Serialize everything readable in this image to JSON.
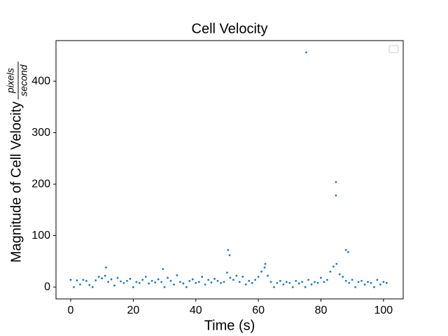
{
  "chart_data": {
    "type": "scatter",
    "title": "Cell Velocity",
    "xlabel": "Time (s)",
    "ylabel": "Magnitude of Cell Velocity",
    "ylabel_fraction_numerator": "pixels",
    "ylabel_fraction_denominator": "second",
    "color": "#1f77b4",
    "x": [
      0,
      1,
      2,
      3,
      4,
      5,
      6,
      7,
      8,
      9,
      10,
      11,
      12,
      13,
      14,
      15,
      16,
      17,
      18,
      19,
      20,
      21,
      22,
      23,
      24,
      25,
      26,
      27,
      28,
      29,
      30,
      31,
      32,
      33,
      34,
      35,
      36,
      37,
      38,
      39,
      40,
      41,
      42,
      43,
      44,
      45,
      46,
      47,
      48,
      49,
      50,
      51,
      52,
      53,
      54,
      55,
      56,
      57,
      58,
      59,
      60,
      61,
      62,
      63,
      64,
      65,
      66,
      67,
      68,
      69,
      70,
      71,
      72,
      73,
      74,
      75,
      76,
      77,
      78,
      79,
      80,
      81,
      82,
      83,
      84,
      85,
      86,
      87,
      88,
      89,
      90,
      91,
      92,
      93,
      94,
      95,
      96,
      97,
      98,
      99,
      100,
      101,
      50.3,
      50.8,
      75.3,
      84.8,
      84.8,
      88,
      88.7,
      11.3,
      29.5,
      62.2
    ],
    "y": [
      14,
      0,
      13,
      5,
      14,
      12,
      4,
      0,
      13,
      20,
      17,
      22,
      10,
      15,
      3,
      18,
      11,
      8,
      12,
      16,
      0,
      10,
      8,
      14,
      20,
      7,
      12,
      9,
      15,
      10,
      0,
      18,
      12,
      5,
      23,
      10,
      7,
      0,
      12,
      15,
      8,
      10,
      20,
      5,
      14,
      9,
      16,
      12,
      8,
      10,
      28,
      18,
      14,
      22,
      10,
      20,
      5,
      12,
      8,
      14,
      20,
      30,
      38,
      22,
      10,
      0,
      8,
      12,
      5,
      10,
      8,
      0,
      12,
      7,
      10,
      0,
      14,
      5,
      10,
      8,
      18,
      10,
      14,
      30,
      40,
      45,
      25,
      20,
      12,
      8,
      14,
      0,
      10,
      12,
      5,
      10,
      8,
      0,
      14,
      5,
      10,
      8,
      72,
      62,
      456,
      204,
      178,
      72,
      68,
      38,
      35,
      45
    ],
    "xlim": [
      -4.7,
      106.3
    ],
    "ylim": [
      -23,
      479
    ],
    "xticks": [
      0,
      20,
      40,
      60,
      80,
      100
    ],
    "yticks": [
      0,
      100,
      200,
      300,
      400
    ]
  }
}
